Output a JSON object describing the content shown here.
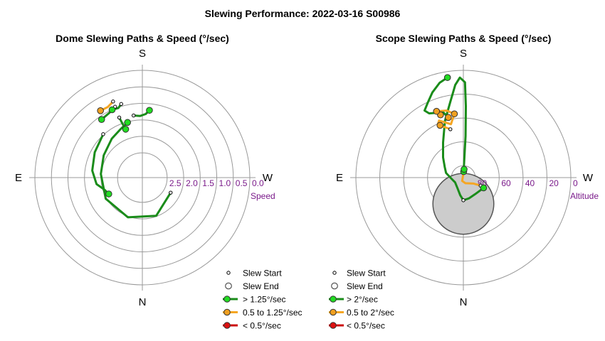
{
  "title": "Slewing Performance: 2022-03-16 S00986",
  "charts": [
    {
      "title": "Dome Slewing Paths & Speed (°/sec)",
      "compass": {
        "top": "S",
        "left": "E",
        "right": "W",
        "bottom": "N"
      },
      "radial_title": "Speed",
      "radial_ticks": [
        "2.5",
        "2.0",
        "1.5",
        "1.0",
        "0.5",
        "0.0"
      ],
      "legend": [
        "Slew Start",
        "Slew End",
        "> 1.25°/sec",
        "0.5 to 1.25°/sec",
        "< 0.5°/sec"
      ]
    },
    {
      "title": "Scope Slewing Paths & Speed (°/sec)",
      "compass": {
        "top": "S",
        "left": "E",
        "right": "W",
        "bottom": "N"
      },
      "radial_title": "Altitude",
      "radial_ticks": [
        "80",
        "60",
        "40",
        "20",
        "0"
      ],
      "legend": [
        "Slew Start",
        "Slew End",
        "> 2°/sec",
        "0.5 to 2°/sec",
        "< 0.5°/sec"
      ]
    }
  ],
  "colors": {
    "fast": "#1a8c1a",
    "medium": "#f5a623",
    "slow": "#cc1111",
    "fast_marker": "#22dd22",
    "medium_marker": "#f0a020",
    "slow_marker": "#dd1111",
    "tick_label": "#7a1a8a",
    "grid": "#999999",
    "excluded_zone": "#cccccc"
  },
  "chart_data": [
    {
      "type": "polar",
      "angle_convention": "azimuth degrees: S=0 at top, W=90 at right, N=180 at bottom, E=270 at left",
      "r_axis": {
        "label": "Speed",
        "range": [
          2.5,
          0.0
        ],
        "inner_gap": 0.75
      },
      "grid_rings": [
        2.5,
        2.0,
        1.5,
        1.0,
        0.5,
        0.0
      ],
      "legend_position": "bottom-right",
      "paths": [
        {
          "speed_class": "fast",
          "points": [
            [
              118,
              2.28
            ],
            [
              160,
              2.02
            ],
            [
              200,
              1.97
            ],
            [
              240,
              1.97
            ],
            [
              275,
              1.99
            ],
            [
              300,
              1.9
            ],
            [
              322,
              1.75
            ],
            [
              335,
              1.65
            ],
            [
              345,
              1.52
            ]
          ]
        },
        {
          "speed_class": "fast",
          "points": [
            [
              318,
              1.48
            ],
            [
              298,
              1.62
            ],
            [
              278,
              1.72
            ],
            [
              262,
              1.85
            ],
            [
              252,
              2.05
            ],
            [
              244,
              2.12
            ]
          ]
        },
        {
          "speed_class": "fast",
          "points": [
            [
              339,
              1.3
            ],
            [
              340,
              1.55
            ],
            [
              341,
              1.7
            ]
          ]
        },
        {
          "speed_class": "fast",
          "points": [
            [
              352,
              1.35
            ],
            [
              358,
              1.38
            ],
            [
              3,
              1.32
            ],
            [
              6,
              1.2
            ]
          ]
        },
        {
          "speed_class": "fast",
          "points": [
            [
              339,
              0.95
            ],
            [
              333,
              1.05
            ],
            [
              325,
              1.1
            ]
          ]
        },
        {
          "speed_class": "fast",
          "points": [
            [
              344,
              0.93
            ],
            [
              341,
              1.02
            ],
            [
              336,
              1.0
            ]
          ]
        },
        {
          "speed_class": "medium",
          "points": [
            [
              339,
              0.78
            ],
            [
              334,
              0.87
            ],
            [
              328,
              0.86
            ]
          ]
        }
      ],
      "slew_starts": [
        [
          118,
          2.28
        ],
        [
          318,
          1.48
        ],
        [
          339,
          1.3
        ],
        [
          352,
          1.35
        ],
        [
          339,
          0.95
        ],
        [
          344,
          0.93
        ],
        [
          339,
          0.78
        ]
      ],
      "slew_ends": [
        {
          "point": [
            345,
            1.52
          ],
          "speed_class": "fast"
        },
        {
          "point": [
            244,
            2.12
          ],
          "speed_class": "fast"
        },
        {
          "point": [
            341,
            1.7
          ],
          "speed_class": "fast"
        },
        {
          "point": [
            6,
            1.2
          ],
          "speed_class": "fast"
        },
        {
          "point": [
            325,
            1.1
          ],
          "speed_class": "fast"
        },
        {
          "point": [
            336,
            1.0
          ],
          "speed_class": "fast"
        },
        {
          "point": [
            328,
            0.86
          ],
          "speed_class": "medium"
        }
      ]
    },
    {
      "type": "polar",
      "angle_convention": "azimuth degrees: S=0 at top, W=90 at right, N=180 at bottom, E=270 at left",
      "r_axis": {
        "label": "Altitude",
        "range": [
          90,
          0
        ]
      },
      "grid_rings": [
        80,
        60,
        40,
        20,
        0
      ],
      "legend_position": "bottom-right",
      "excluded_zone": {
        "center": [
          180,
          68
        ],
        "radius_deg": 25.5
      },
      "paths": [
        {
          "speed_class": "fast",
          "points": [
            [
              180,
              71
            ],
            [
              190,
              75
            ],
            [
              210,
              80
            ],
            [
              240,
              82
            ],
            [
              265,
              80
            ],
            [
              285,
              75
            ],
            [
              300,
              72
            ],
            [
              315,
              66
            ],
            [
              330,
              56
            ],
            [
              342,
              40
            ],
            [
              350,
              26
            ],
            [
              355,
              12
            ],
            [
              358,
              6
            ],
            [
              1,
              10
            ],
            [
              2,
              30
            ],
            [
              3,
              55
            ],
            [
              3,
              76
            ],
            [
              3,
              85
            ]
          ]
        },
        {
          "speed_class": "fast",
          "points": [
            [
              180,
              71
            ],
            [
              165,
              72
            ],
            [
              145,
              73
            ],
            [
              125,
              72
            ],
            [
              117,
              71
            ]
          ]
        },
        {
          "speed_class": "medium",
          "points": [
            [
              115,
              74
            ],
            [
              120,
              80
            ],
            [
              160,
              85
            ],
            [
              200,
              87
            ],
            [
              5,
              83
            ]
          ]
        },
        {
          "speed_class": "medium",
          "points": [
            [
              345,
              48
            ],
            [
              336,
              42
            ],
            [
              335,
              40
            ],
            [
              337,
              38
            ],
            [
              347,
              44
            ],
            [
              352,
              36
            ],
            [
              346,
              32
            ],
            [
              338,
              30
            ],
            [
              340,
              34
            ]
          ]
        },
        {
          "speed_class": "fast",
          "points": [
            [
              351,
              5
            ],
            [
              346,
              8
            ],
            [
              340,
              14
            ],
            [
              335,
              20
            ],
            [
              330,
              25
            ],
            [
              332,
              29
            ],
            [
              337,
              31
            ],
            [
              343,
              33
            ],
            [
              346,
              38
            ]
          ]
        }
      ],
      "slew_starts": [
        [
          180,
          71
        ],
        [
          115,
          74
        ],
        [
          345,
          48
        ],
        [
          351,
          5
        ],
        [
          117,
          71
        ]
      ],
      "slew_ends": [
        {
          "point": [
            3,
            85
          ],
          "speed_class": "fast"
        },
        {
          "point": [
            117,
            71
          ],
          "speed_class": "fast"
        },
        {
          "point": [
            5,
            83
          ],
          "speed_class": "fast"
        },
        {
          "point": [
            340,
            34
          ],
          "speed_class": "medium"
        },
        {
          "point": [
            346,
            38
          ],
          "speed_class": "medium"
        },
        {
          "point": [
            336,
            42
          ],
          "speed_class": "medium"
        },
        {
          "point": [
            352,
            36
          ],
          "speed_class": "medium"
        },
        {
          "point": [
            338,
            30
          ],
          "speed_class": "medium"
        },
        {
          "point": [
            351,
            5
          ],
          "speed_class": "fast"
        }
      ]
    }
  ]
}
